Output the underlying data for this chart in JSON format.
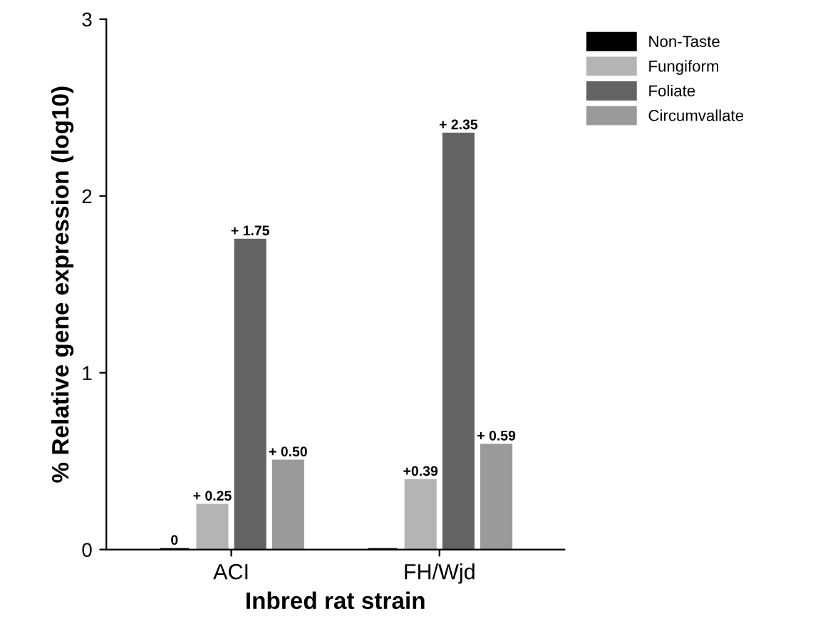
{
  "chart_data": {
    "type": "bar",
    "xlabel": "Inbred rat strain",
    "ylabel": "% Relative gene expression (log10)",
    "categories": [
      "ACI",
      "FH/Wjd"
    ],
    "series": [
      {
        "name": "Non-Taste",
        "color": "#000000",
        "values": [
          0,
          0
        ],
        "value_labels": [
          "0",
          null
        ]
      },
      {
        "name": "Fungiform",
        "color": "#b4b4b4",
        "values": [
          0.25,
          0.39
        ],
        "value_labels": [
          "+ 0.25",
          "+0.39"
        ]
      },
      {
        "name": "Foliate",
        "color": "#636363",
        "values": [
          1.75,
          2.35
        ],
        "value_labels": [
          "+ 1.75",
          "+ 2.35"
        ]
      },
      {
        "name": "Circumvallate",
        "color": "#9a9a9a",
        "values": [
          0.5,
          0.59
        ],
        "value_labels": [
          "+ 0.50",
          "+ 0.59"
        ]
      }
    ],
    "ylim": [
      0,
      3
    ],
    "yticks": [
      0,
      1,
      2,
      3
    ],
    "legend": "top right",
    "grid": false
  }
}
